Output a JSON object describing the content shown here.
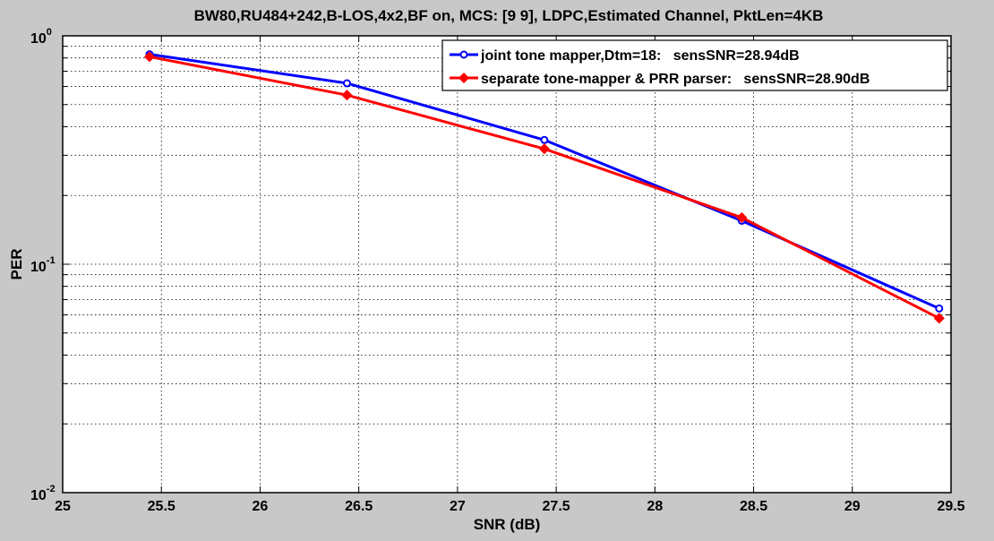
{
  "chart_data": {
    "type": "line",
    "title": "BW80,RU484+242,B-LOS,4x2,BF on, MCS: [9  9], LDPC,Estimated Channel, PktLen=4KB",
    "xlabel": "SNR (dB)",
    "ylabel": "PER",
    "xlim": [
      25,
      29.5
    ],
    "ylim": [
      0.01,
      1
    ],
    "yscale": "log",
    "grid": true,
    "legend_position": "top-right",
    "x_ticks": [
      "25",
      "25.5",
      "26",
      "26.5",
      "27",
      "27.5",
      "28",
      "28.5",
      "29",
      "29.5"
    ],
    "y_ticks": [
      {
        "base": "10",
        "exp": "0"
      },
      {
        "base": "10",
        "exp": "-1"
      },
      {
        "base": "10",
        "exp": "-2"
      }
    ],
    "series": [
      {
        "name": "joint tone mapper,Dtm=18:   sensSNR=28.94dB",
        "color": "#0000ff",
        "marker": "circle",
        "x": [
          25.44,
          26.44,
          27.44,
          28.44,
          29.44
        ],
        "y": [
          0.83,
          0.62,
          0.35,
          0.155,
          0.064
        ]
      },
      {
        "name": "separate tone-mapper & PRR parser:   sensSNR=28.90dB",
        "color": "#ff0000",
        "marker": "diamond",
        "x": [
          25.44,
          26.44,
          27.44,
          28.44,
          29.44
        ],
        "y": [
          0.81,
          0.55,
          0.32,
          0.16,
          0.058
        ]
      }
    ]
  }
}
